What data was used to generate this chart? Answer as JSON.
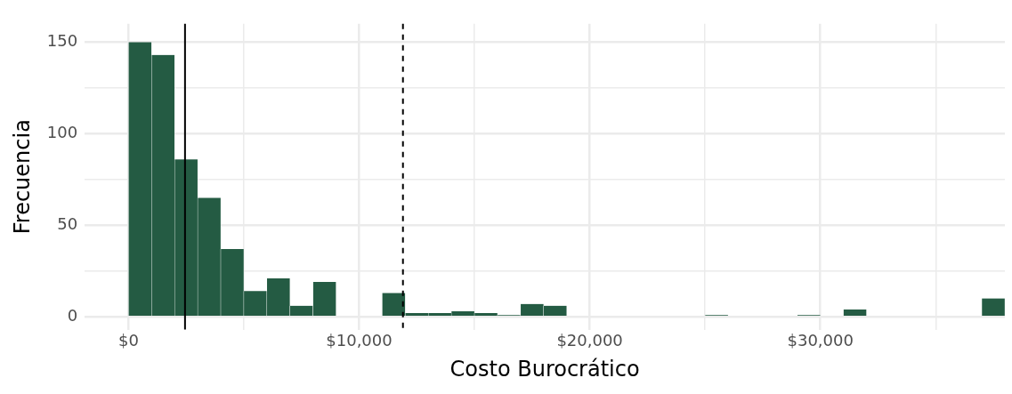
{
  "chart_data": {
    "type": "histogram",
    "xlabel": "Costo Burocrático",
    "ylabel": "Frecuencia",
    "bins": [
      0,
      1000,
      2000,
      3000,
      4000,
      5000,
      6000,
      7000,
      8000,
      9000,
      10000,
      11000,
      12000,
      13000,
      14000,
      15000,
      16000,
      17000,
      18000,
      19000,
      20000,
      21000,
      22000,
      23000,
      24000,
      25000,
      26000,
      27000,
      28000,
      29000,
      30000,
      31000,
      32000,
      33000,
      34000,
      35000,
      36000,
      37000,
      38000
    ],
    "values": [
      150,
      143,
      86,
      65,
      37,
      14,
      21,
      6,
      19,
      0,
      0,
      13,
      2,
      2,
      3,
      2,
      1,
      7,
      6,
      0,
      0,
      0,
      0,
      0,
      0,
      1,
      0,
      0,
      0,
      1,
      0,
      4,
      0,
      0,
      0,
      0,
      0,
      10
    ],
    "color": "#245b43",
    "xlim": [
      -1900,
      38000
    ],
    "xticks": [
      {
        "value": 0,
        "label": "$0"
      },
      {
        "value": 5000,
        "label": null
      },
      {
        "value": 10000,
        "label": "$10,000"
      },
      {
        "value": 15000,
        "label": null
      },
      {
        "value": 20000,
        "label": "$20,000"
      },
      {
        "value": 25000,
        "label": null
      },
      {
        "value": 30000,
        "label": "$30,000"
      },
      {
        "value": 35000,
        "label": null
      }
    ],
    "ylim": [
      -7,
      160
    ],
    "yticks": [
      0,
      {
        "value": 25,
        "label": null
      },
      50,
      {
        "value": 75,
        "label": null
      },
      100,
      {
        "value": 125,
        "label": null
      },
      150
    ],
    "grid": true,
    "ref_lines": [
      {
        "axis": "x",
        "value": 2450,
        "color": "#000000",
        "line_style": "solid"
      },
      {
        "axis": "x",
        "value": 11900,
        "color": "#000000",
        "line_style": "dashed"
      }
    ]
  }
}
